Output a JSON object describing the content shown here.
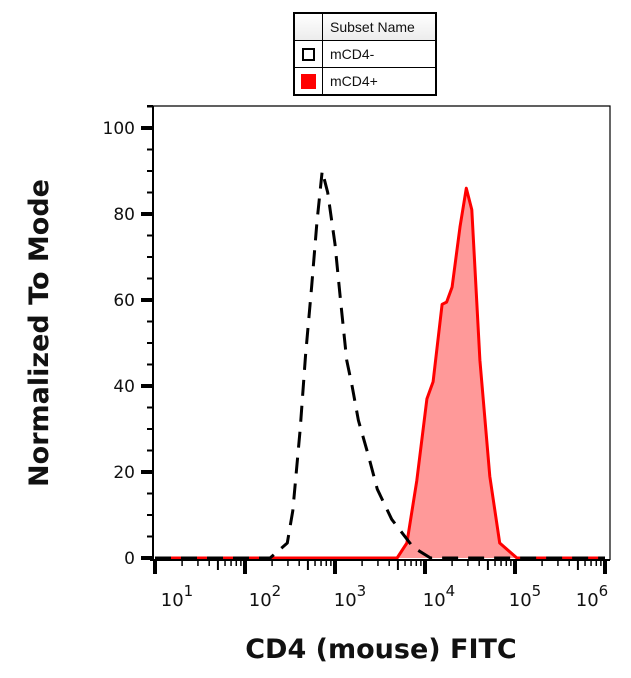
{
  "chart_data": {
    "type": "area",
    "title": "",
    "xlabel": "CD4 (mouse) FITC",
    "ylabel": "Normalized To Mode",
    "x_scale": "log",
    "xlim": [
      10,
      1000000
    ],
    "ylim": [
      0,
      100
    ],
    "x_ticks": [
      {
        "base": "10",
        "exp": "1",
        "value": 10
      },
      {
        "base": "10",
        "exp": "2",
        "value": 100
      },
      {
        "base": "10",
        "exp": "3",
        "value": 1000
      },
      {
        "base": "10",
        "exp": "4",
        "value": 10000
      },
      {
        "base": "10",
        "exp": "5",
        "value": 100000
      },
      {
        "base": "10",
        "exp": "6",
        "value": 1000000
      }
    ],
    "y_ticks": [
      "0",
      "20",
      "40",
      "60",
      "80",
      "100"
    ],
    "grid": false,
    "legend": {
      "placement": "top",
      "header": "Subset Name",
      "entries": [
        {
          "label": "mCD4-",
          "swatch": "outline"
        },
        {
          "label": "mCD4+",
          "swatch": "filled"
        }
      ]
    },
    "series": [
      {
        "name": "mCD4-",
        "style": "dashed",
        "color": "#000000",
        "fill": "none",
        "x": [
          10,
          190,
          295,
          340,
          410,
          470,
          550,
          630,
          720,
          830,
          1000,
          1150,
          1350,
          1550,
          1820,
          2340,
          2950,
          4270,
          7400,
          11500,
          1000000
        ],
        "y": [
          0,
          0,
          3.5,
          11,
          30,
          47,
          63,
          78,
          90,
          85,
          73,
          60,
          46,
          40,
          32,
          24,
          16,
          9,
          2.5,
          0,
          0
        ]
      },
      {
        "name": "mCD4+",
        "style": "solid",
        "color": "#ff0000",
        "fill": "#ff9999",
        "x": [
          10,
          4900,
          6300,
          8100,
          10500,
          12300,
          15500,
          17400,
          20000,
          24500,
          28800,
          33100,
          40700,
          52500,
          67600,
          105000,
          1000000
        ],
        "y": [
          0,
          0,
          3.5,
          18,
          37,
          41,
          59,
          59.5,
          63,
          77,
          86,
          81,
          46,
          19,
          3.5,
          0,
          0
        ]
      }
    ]
  }
}
